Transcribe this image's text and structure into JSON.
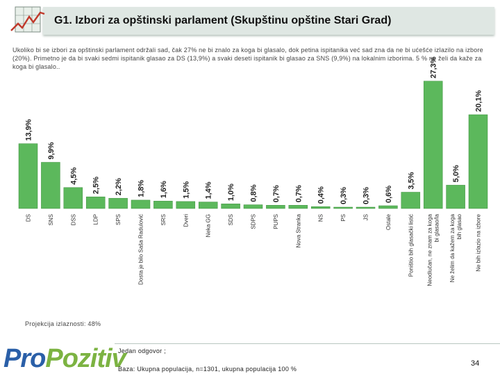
{
  "header": {
    "title": "G1. Izbori za opštinski parlament (Skupštinu opštine Stari Grad)"
  },
  "description": "Ukoliko bi se izbori za opštinski parlament održali sad, čak 27% ne bi znalo za koga bi glasalo, dok petina ispitanika već sad zna da ne bi ućešće izlazilo na izbore (20%). Primetno je da bi svaki sedmi ispitanik glasao za DS (13,9%) a svaki deseti ispitanik bi glasao za SNS (9,9%) na lokalnim izborima. 5 % ne želi da kaže za koga bi glasalo..",
  "turnout_label": "Projekcija izlaznosti: 48%",
  "footer": {
    "logo_pro": "Pro",
    "logo_pozitiv": "Pozitiv",
    "note": "Jedan odgovor ;",
    "base": "Baza: Ukupna populacija, n=1301, ukupna populacija 100 %",
    "page_number": "34"
  },
  "colors": {
    "bar": "#5cb85c",
    "bar_stroke": "#3f8f3f",
    "header_bar": "#dfe7e3",
    "logo_blue": "#2a5fa8",
    "logo_green": "#7cb342"
  },
  "chart_data": {
    "type": "bar",
    "categories": [
      "DS",
      "SNS",
      "DSS",
      "LDP",
      "SPS",
      "Dosta je bilo Saša Radulović",
      "SRS",
      "Dveri",
      "Nekа GG",
      "SDS",
      "SDPS",
      "PUPS",
      "Nova Stranka",
      "NS",
      "PS",
      "JS",
      "Ostale",
      "Poništio bih glasački listić",
      "Neodlučan, ne znam za koga bi glasao/la",
      "Ne želim da kažem za koga bih glasao",
      "Ne bih izlazio na izbore"
    ],
    "values": [
      13.9,
      9.9,
      4.5,
      2.5,
      2.2,
      1.8,
      1.6,
      1.5,
      1.4,
      1.0,
      0.8,
      0.7,
      0.7,
      0.4,
      0.3,
      0.3,
      0.6,
      3.5,
      27.3,
      5.0,
      20.1
    ],
    "value_labels": [
      "13,9%",
      "9,9%",
      "4,5%",
      "2,5%",
      "2,2%",
      "1,8%",
      "1,6%",
      "1,5%",
      "1,4%",
      "1,0%",
      "0,8%",
      "0,7%",
      "0,7%",
      "0,4%",
      "0,3%",
      "0,3%",
      "0,6%",
      "3,5%",
      "27,3%",
      "5,0%",
      "20,1%"
    ],
    "ylim": [
      0,
      28
    ],
    "grid": false,
    "legend": "none"
  }
}
